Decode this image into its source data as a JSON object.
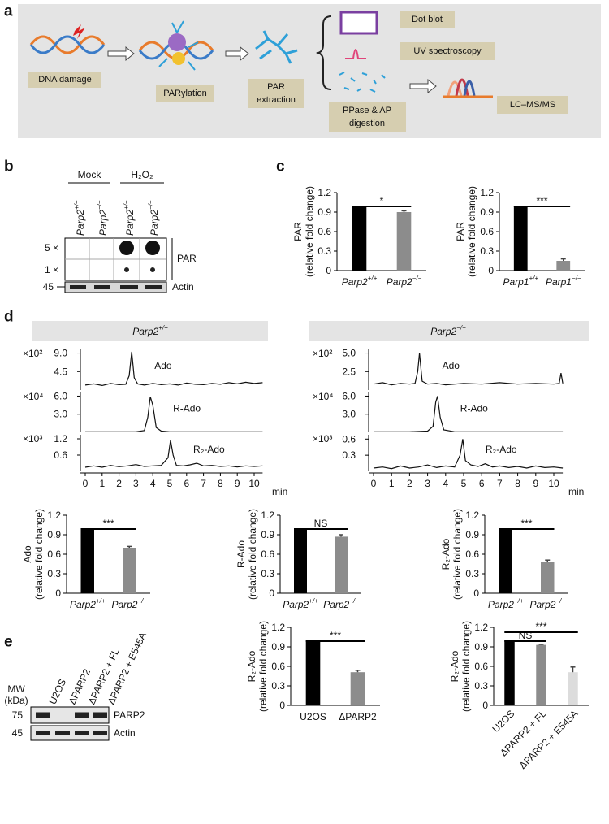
{
  "figure": {
    "a": {
      "label": "a",
      "dna_damage": "DNA damage",
      "parylation": "PARylation",
      "extraction": [
        "PAR",
        "extraction"
      ],
      "digestion": [
        "PPase & AP",
        "digestion"
      ],
      "methods": [
        "Dot blot",
        "UV spectroscopy",
        "LC–MS/MS"
      ]
    },
    "b": {
      "label": "b",
      "groups": [
        "Mock",
        "H₂O₂"
      ],
      "lanes": [
        "Parp2+/+",
        "Parp2−/−",
        "Parp2+/+",
        "Parp2−/−"
      ],
      "dilutions": [
        "5 ×",
        "1 ×"
      ],
      "blot_label": "PAR",
      "mw": "45",
      "loading": "Actin"
    },
    "c": {
      "label": "c"
    },
    "d": {
      "label": "d",
      "headers": [
        "Parp2+/+",
        "Parp2−/−"
      ],
      "x_unit": "min"
    },
    "e": {
      "label": "e",
      "mw_title": [
        "MW",
        "(kDa)"
      ],
      "lanes": [
        "U2OS",
        "ΔPARP2",
        "ΔPARP2 + FL",
        "ΔPARP2 + E545A"
      ],
      "bands": [
        {
          "mw": "75",
          "name": "PARP2"
        },
        {
          "mw": "45",
          "name": "Actin"
        }
      ]
    }
  },
  "chart_data": [
    {
      "type": "bar",
      "ylabel": [
        "PAR",
        "(relative fold change)"
      ],
      "categories": [
        "Parp2+/+",
        "Parp2−/−"
      ],
      "values": [
        1.0,
        0.9
      ],
      "errors": [
        null,
        0.02
      ],
      "colors": [
        "#000000",
        "#8c8c8c"
      ],
      "ylim": [
        0,
        1.2
      ],
      "yticks": [
        0,
        0.3,
        0.6,
        0.9,
        1.2
      ],
      "significance": [
        {
          "pair": [
            0,
            1
          ],
          "label": "*"
        }
      ]
    },
    {
      "type": "bar",
      "ylabel": [
        "PAR",
        "(relative fold change)"
      ],
      "categories": [
        "Parp1+/+",
        "Parp1−/−"
      ],
      "values": [
        1.0,
        0.15
      ],
      "errors": [
        null,
        0.03
      ],
      "colors": [
        "#000000",
        "#8c8c8c"
      ],
      "ylim": [
        0,
        1.2
      ],
      "yticks": [
        0,
        0.3,
        0.6,
        0.9,
        1.2
      ],
      "significance": [
        {
          "pair": [
            0,
            1
          ],
          "label": "***"
        }
      ]
    },
    {
      "type": "line",
      "name": "Ado",
      "multiplier": "×10²",
      "x": [
        0,
        0.5,
        1,
        1.5,
        2,
        2.4,
        2.6,
        2.75,
        2.9,
        3.1,
        3.5,
        4,
        4.5,
        5,
        5.5,
        6,
        6.5,
        7,
        7.5,
        8,
        8.5,
        9,
        9.5,
        10,
        10.5
      ],
      "values": [
        1.2,
        1.5,
        1.1,
        1.6,
        1.3,
        1.4,
        3.5,
        9.3,
        3,
        1.5,
        1.2,
        1.6,
        1.3,
        1.5,
        1.2,
        1.7,
        1.4,
        1.3,
        1.6,
        1.4,
        1.8,
        1.5,
        1.9,
        1.6,
        1.8
      ],
      "xlim": [
        0,
        10.5
      ],
      "ylim": [
        0,
        9.9
      ],
      "yticks": [
        4.5,
        {
          "value": 9,
          "label": "9.0"
        }
      ]
    },
    {
      "type": "line",
      "name": "R-Ado",
      "multiplier": "×10⁴",
      "x": [
        0,
        1,
        2,
        3,
        3.5,
        3.7,
        3.85,
        4.0,
        4.2,
        4.5,
        5,
        6,
        7,
        8,
        9,
        10,
        10.5
      ],
      "values": [
        0.1,
        0.1,
        0.1,
        0.1,
        0.3,
        2.5,
        5.9,
        4.5,
        0.8,
        0.2,
        0.1,
        0.1,
        0.1,
        0.1,
        0.1,
        0.1,
        0.1
      ],
      "xlim": [
        0,
        10.5
      ],
      "ylim": [
        0,
        6.6
      ],
      "yticks": [
        {
          "value": 3,
          "label": "3.0"
        },
        {
          "value": 6,
          "label": "6.0"
        }
      ]
    },
    {
      "type": "line",
      "name": "R₂-Ado",
      "multiplier": "×10³",
      "x": [
        0,
        0.5,
        1,
        1.5,
        2,
        2.5,
        3,
        3.5,
        4,
        4.5,
        4.9,
        5.05,
        5.2,
        5.4,
        5.8,
        6.2,
        6.6,
        7,
        7.5,
        8,
        8.5,
        9,
        9.5,
        10,
        10.5
      ],
      "values": [
        0.15,
        0.2,
        0.15,
        0.22,
        0.17,
        0.2,
        0.25,
        0.18,
        0.2,
        0.22,
        0.5,
        1.15,
        0.6,
        0.22,
        0.2,
        0.24,
        0.3,
        0.2,
        0.22,
        0.18,
        0.2,
        0.16,
        0.2,
        0.18,
        0.2
      ],
      "xlim": [
        0,
        10.5
      ],
      "ylim": [
        0,
        1.35
      ],
      "yticks": [
        0.6,
        1.2
      ],
      "xticks": [
        0,
        1,
        2,
        3,
        4,
        5,
        6,
        7,
        8,
        9,
        10
      ]
    },
    {
      "type": "line",
      "name": "Ado",
      "multiplier": "×10²",
      "x": [
        0,
        0.5,
        1,
        1.5,
        2,
        2.3,
        2.45,
        2.55,
        2.7,
        3,
        3.5,
        4,
        5,
        6,
        7,
        8,
        9,
        10,
        10.3,
        10.4,
        10.5
      ],
      "values": [
        0.8,
        1,
        0.7,
        0.9,
        0.8,
        0.9,
        2.5,
        5.0,
        1.2,
        0.8,
        0.9,
        0.7,
        0.9,
        0.8,
        1.0,
        0.8,
        0.9,
        0.8,
        0.9,
        2.3,
        0.9
      ],
      "xlim": [
        0,
        10.5
      ],
      "ylim": [
        0,
        5.5
      ],
      "yticks": [
        2.5,
        {
          "value": 5,
          "label": "5.0"
        }
      ]
    },
    {
      "type": "line",
      "name": "R-Ado",
      "multiplier": "×10⁴",
      "x": [
        0,
        1,
        2,
        3,
        3.3,
        3.45,
        3.55,
        3.7,
        3.9,
        4.5,
        5,
        6,
        7,
        8,
        9,
        10,
        10.5
      ],
      "values": [
        0.1,
        0.1,
        0.1,
        0.2,
        1.0,
        5.0,
        6.0,
        2.5,
        0.4,
        0.1,
        0.1,
        0.1,
        0.1,
        0.1,
        0.1,
        0.1,
        0.1
      ],
      "xlim": [
        0,
        10.5
      ],
      "ylim": [
        0,
        6.6
      ],
      "yticks": [
        {
          "value": 3,
          "label": "3.0"
        },
        {
          "value": 6,
          "label": "6.0"
        }
      ]
    },
    {
      "type": "line",
      "name": "R₂-Ado",
      "multiplier": "×10³",
      "x": [
        0,
        0.5,
        1,
        1.5,
        2,
        2.5,
        3,
        3.5,
        4,
        4.5,
        4.8,
        4.95,
        5.1,
        5.4,
        5.8,
        6.2,
        6.6,
        7,
        7.5,
        8,
        8.5,
        9,
        9.5,
        10,
        10.5
      ],
      "values": [
        0.06,
        0.08,
        0.05,
        0.1,
        0.06,
        0.08,
        0.12,
        0.07,
        0.1,
        0.08,
        0.3,
        0.6,
        0.2,
        0.12,
        0.09,
        0.14,
        0.08,
        0.1,
        0.07,
        0.09,
        0.06,
        0.1,
        0.07,
        0.08,
        0.06
      ],
      "xlim": [
        0,
        10.5
      ],
      "ylim": [
        0,
        0.68
      ],
      "yticks": [
        0.3,
        0.6
      ],
      "xticks": [
        0,
        1,
        2,
        3,
        4,
        5,
        6,
        7,
        8,
        9,
        10
      ]
    },
    {
      "type": "bar",
      "ylabel": [
        "Ado",
        "(relative fold change)"
      ],
      "categories": [
        "Parp2+/+",
        "Parp2−/−"
      ],
      "values": [
        1.0,
        0.7
      ],
      "errors": [
        null,
        0.02
      ],
      "colors": [
        "#000000",
        "#8c8c8c"
      ],
      "ylim": [
        0,
        1.2
      ],
      "yticks": [
        0,
        0.3,
        0.6,
        0.9,
        1.2
      ],
      "significance": [
        {
          "pair": [
            0,
            1
          ],
          "label": "***"
        }
      ]
    },
    {
      "type": "bar",
      "ylabel": [
        "R-Ado",
        "(relative fold change)"
      ],
      "categories": [
        "Parp2+/+",
        "Parp2−/−"
      ],
      "values": [
        1.0,
        0.87
      ],
      "errors": [
        null,
        0.03
      ],
      "colors": [
        "#000000",
        "#8c8c8c"
      ],
      "ylim": [
        0,
        1.2
      ],
      "yticks": [
        0,
        0.3,
        0.6,
        0.9,
        1.2
      ],
      "significance": [
        {
          "pair": [
            0,
            1
          ],
          "label": "NS"
        }
      ]
    },
    {
      "type": "bar",
      "ylabel": [
        "R₂-Ado",
        "(relative fold change)"
      ],
      "categories": [
        "Parp2+/+",
        "Parp2−/−"
      ],
      "values": [
        1.0,
        0.48
      ],
      "errors": [
        null,
        0.03
      ],
      "colors": [
        "#000000",
        "#8c8c8c"
      ],
      "ylim": [
        0,
        1.2
      ],
      "yticks": [
        0,
        0.3,
        0.6,
        0.9,
        1.2
      ],
      "significance": [
        {
          "pair": [
            0,
            1
          ],
          "label": "***"
        }
      ]
    },
    {
      "type": "bar",
      "ylabel": [
        "R₂-Ado",
        "(relative fold change)"
      ],
      "categories": [
        "U2OS",
        "ΔPARP2"
      ],
      "values": [
        1.0,
        0.51
      ],
      "errors": [
        null,
        0.03
      ],
      "colors": [
        "#000000",
        "#8c8c8c"
      ],
      "ylim": [
        0,
        1.2
      ],
      "yticks": [
        0,
        0.3,
        0.6,
        0.9,
        1.2
      ],
      "significance": [
        {
          "pair": [
            0,
            1
          ],
          "label": "***"
        }
      ]
    },
    {
      "type": "bar",
      "ylabel": [
        "R₂-Ado",
        "(relative fold change)"
      ],
      "categories": [
        "U2OS",
        "ΔPARP2 + FL",
        "ΔPARP2 + E545A"
      ],
      "values": [
        1.0,
        0.93,
        0.51
      ],
      "errors": [
        null,
        0.01,
        0.08
      ],
      "colors": [
        "#000000",
        "#8c8c8c",
        "#dcdcdc"
      ],
      "ylim": [
        0,
        1.2
      ],
      "yticks": [
        0,
        0.3,
        0.6,
        0.9,
        1.2
      ],
      "rotate_labels": true,
      "significance": [
        {
          "pair": [
            0,
            1
          ],
          "label": "NS"
        },
        {
          "pair": [
            0,
            2
          ],
          "label": "***"
        }
      ]
    }
  ]
}
